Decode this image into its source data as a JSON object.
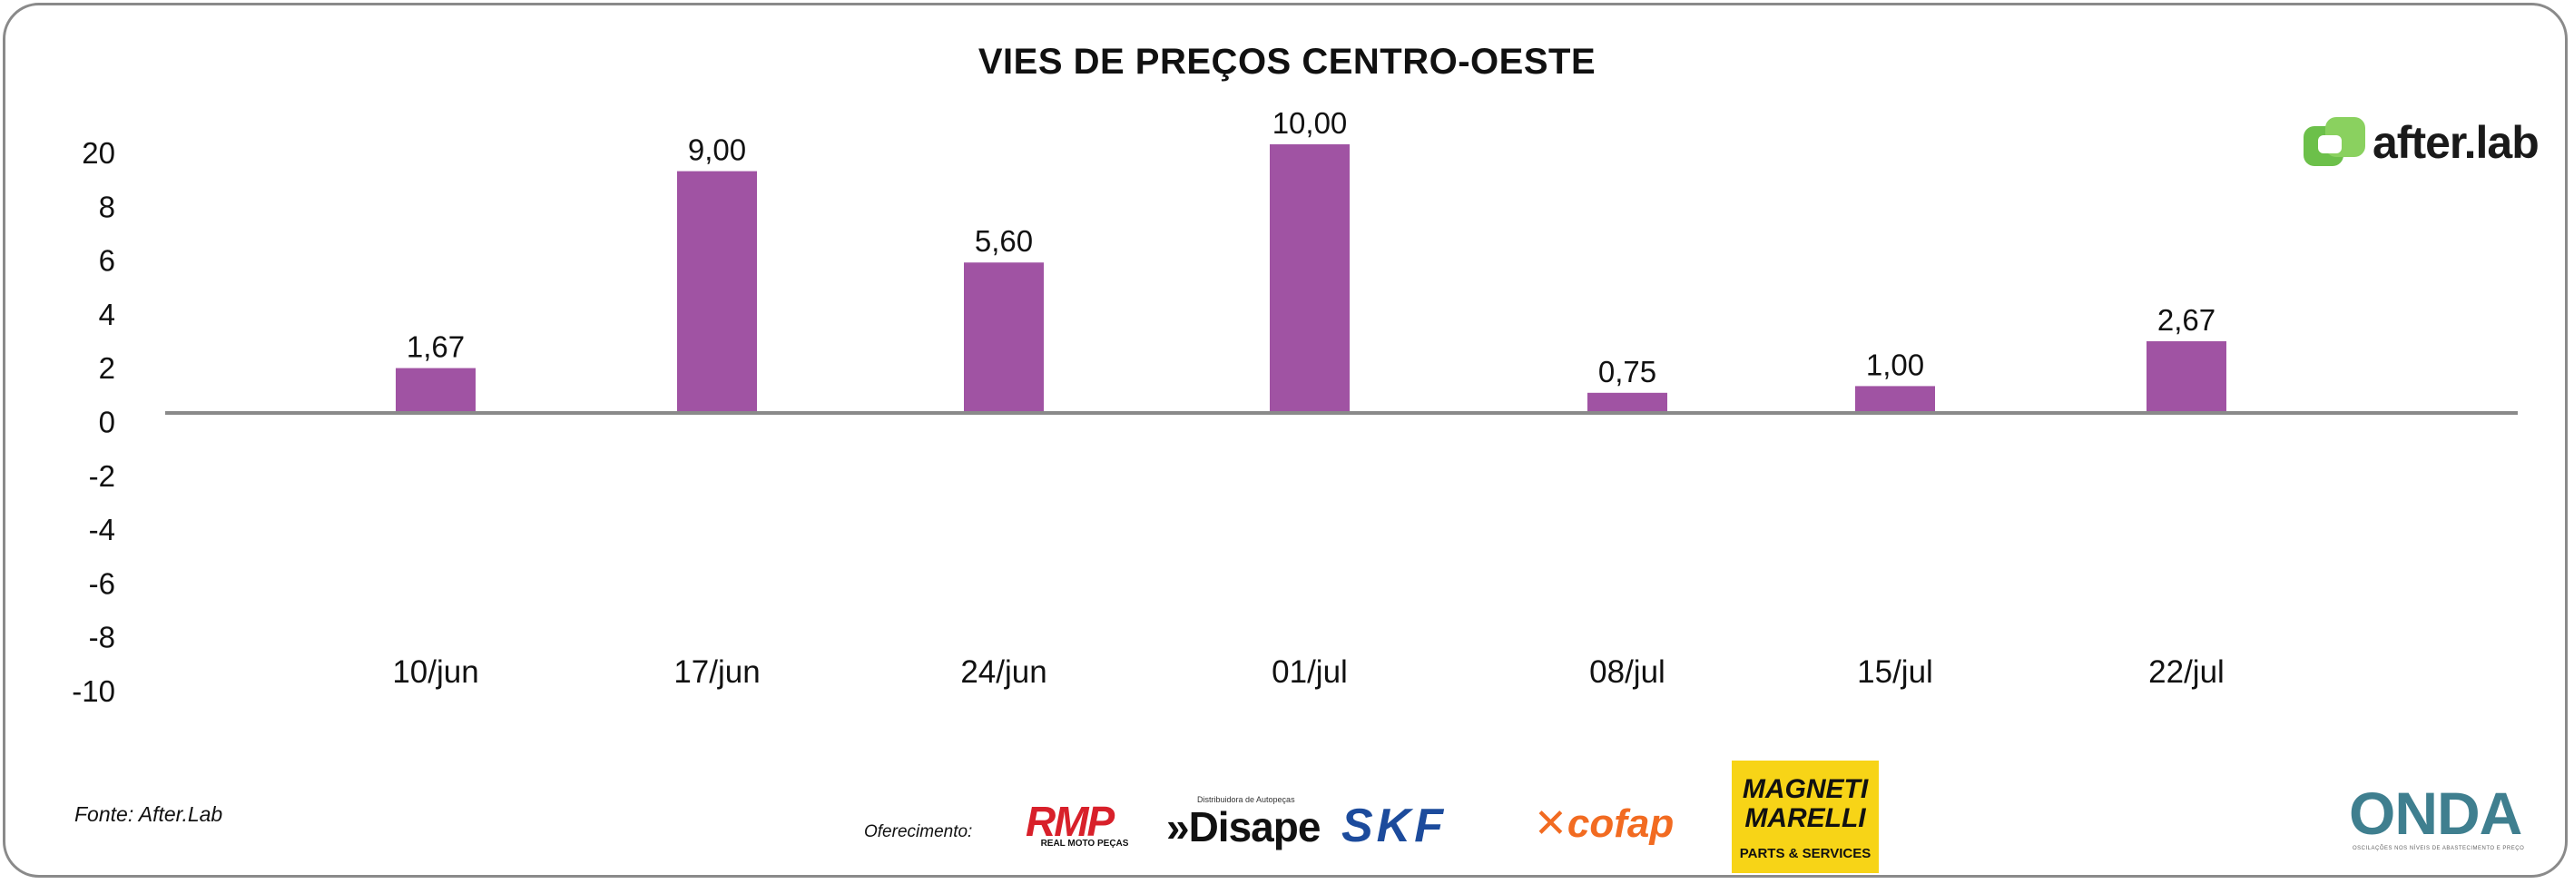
{
  "chart_data": {
    "type": "bar",
    "title": "VIES DE PREÇOS CENTRO-OESTE",
    "categories": [
      "10/jun",
      "17/jun",
      "24/jun",
      "01/jul",
      "08/jul",
      "15/jul",
      "22/jul"
    ],
    "values": [
      1.67,
      9.0,
      5.6,
      10.0,
      0.75,
      1.0,
      2.67
    ],
    "value_labels": [
      "1,67",
      "9,00",
      "5,60",
      "10,00",
      "0,75",
      "1,00",
      "2,67"
    ],
    "y_ticks": [
      "20",
      "8",
      "6",
      "4",
      "2",
      "0",
      "-2",
      "-4",
      "-6",
      "-8",
      "-10"
    ],
    "ylim": [
      -10,
      20
    ],
    "xlabel": "",
    "ylabel": "",
    "grid": false,
    "bar_color": "#a053a3"
  },
  "source": "Fonte: After.Lab",
  "sponsor_label": "Oferecimento:",
  "logos": {
    "afterlab": "after.lab",
    "rmp": "RMP",
    "rmp_sub": "REAL MOTO PEÇAS",
    "disape": "»Disape",
    "disape_sub": "Distribuidora de Autopeças",
    "skf": "SKF",
    "cofap": "cofap",
    "magneti_marelli": "MAGNETI MARELLI",
    "magneti_marelli_sub": "PARTS & SERVICES",
    "onda": "ONDA",
    "onda_sub": "OSCILAÇÕES NOS NÍVEIS DE ABASTECIMENTO E PREÇO"
  },
  "colors": {
    "bar": "#a053a3",
    "axis": "#8a8a8a",
    "frame": "#8a8a8a",
    "afterlab_green": "#6cc04a",
    "skf_blue": "#1c4b9c",
    "cofap_orange": "#f26b21",
    "rmp_red": "#d8202a",
    "marelli_yellow": "#f7d417"
  }
}
